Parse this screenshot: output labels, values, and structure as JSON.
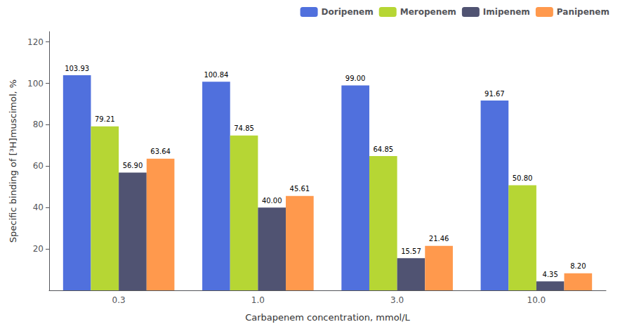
{
  "chart_data": {
    "type": "bar",
    "xlabel": "Carbapenem concentration, mmol/L",
    "ylabel": "Specific binding of [³H]muscimol, %",
    "categories": [
      "0.3",
      "1.0",
      "3.0",
      "10.0"
    ],
    "series": [
      {
        "name": "Doripenem",
        "values": [
          103.93,
          100.84,
          99.0,
          91.67
        ],
        "value_labels": [
          "103.93",
          "100.84",
          "99.00",
          "91.67"
        ]
      },
      {
        "name": "Meropenem",
        "values": [
          79.21,
          74.85,
          64.85,
          50.8
        ],
        "value_labels": [
          "79.21",
          "74.85",
          "64.85",
          "50.80"
        ]
      },
      {
        "name": "Imipenem",
        "values": [
          56.9,
          40.0,
          15.57,
          4.35
        ],
        "value_labels": [
          "56.90",
          "40.00",
          "15.57",
          "4.35"
        ]
      },
      {
        "name": "Panipenem",
        "values": [
          63.64,
          45.61,
          21.46,
          8.2
        ],
        "value_labels": [
          "63.64",
          "45.61",
          "21.46",
          "8.20"
        ]
      }
    ],
    "ylim": [
      0,
      125
    ],
    "yticks": [
      20,
      40,
      60,
      80,
      100,
      120
    ],
    "data_labels": true,
    "legend": "upper right",
    "grid": false
  }
}
